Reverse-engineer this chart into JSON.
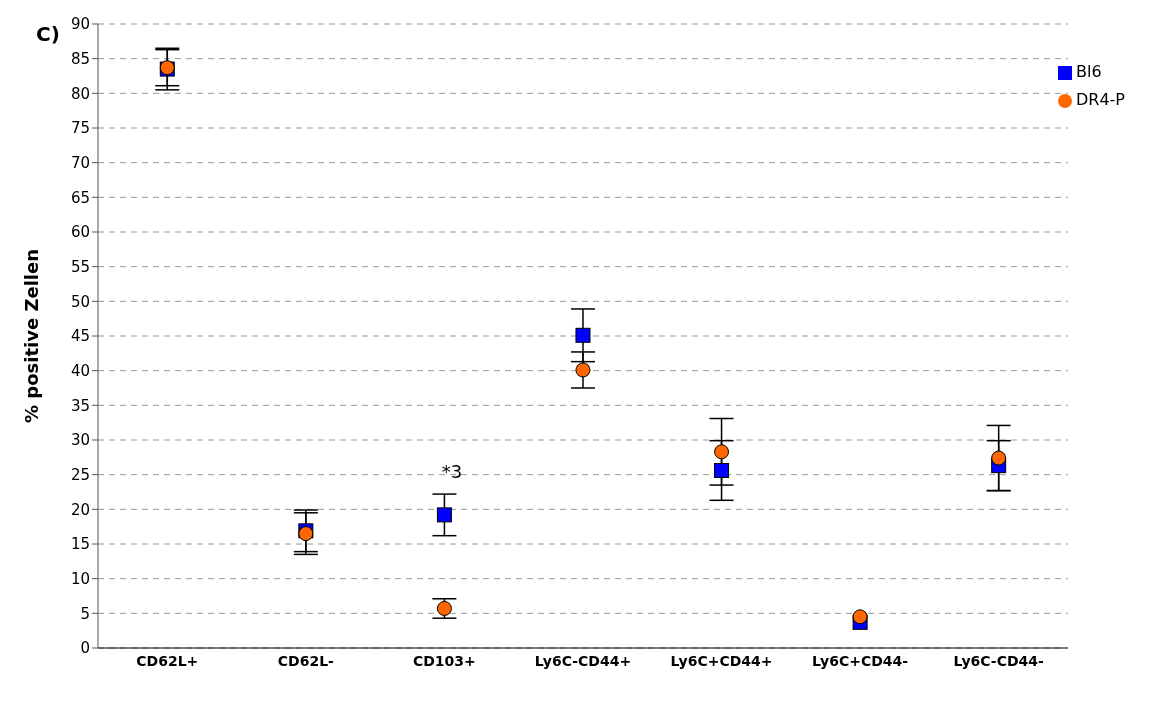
{
  "chart_data": {
    "type": "scatter",
    "title": "C)",
    "ylabel": "% positive Zellen",
    "categories": [
      "CD62L+",
      "CD62L-",
      "CD103+",
      "Ly6C-CD44+",
      "Ly6C+CD44+",
      "Ly6C+CD44-",
      "Ly6C-CD44-"
    ],
    "series": [
      {
        "name": "Bl6",
        "color": "#0000ff",
        "marker": "square",
        "values": [
          83.5,
          16.9,
          19.2,
          45.1,
          25.6,
          3.7,
          26.3
        ],
        "errors": [
          3,
          3,
          3,
          3.8,
          4.3,
          null,
          3.6
        ]
      },
      {
        "name": "DR4-P",
        "color": "#ff6600",
        "marker": "circle",
        "values": [
          83.7,
          16.5,
          5.7,
          40.1,
          28.3,
          4.5,
          27.4
        ],
        "errors": [
          2.6,
          3,
          1.4,
          2.6,
          4.8,
          null,
          4.7
        ]
      }
    ],
    "ylim": [
      0,
      90
    ],
    "yticks": [
      0,
      5,
      10,
      15,
      20,
      25,
      30,
      35,
      40,
      45,
      50,
      55,
      60,
      65,
      70,
      75,
      80,
      85,
      90
    ],
    "grid": "y",
    "legend": "top right",
    "annotations": [
      "*3"
    ]
  }
}
